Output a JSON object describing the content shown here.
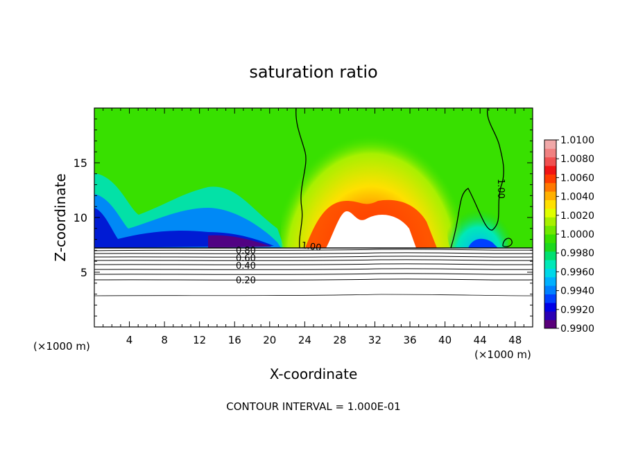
{
  "chart_data": {
    "type": "heatmap",
    "title": "saturation ratio",
    "xlabel": "X-coordinate",
    "ylabel": "Z-coordinate",
    "x_unit_left": "(×1000 m)",
    "x_unit_right": "(×1000 m)",
    "footer": "CONTOUR INTERVAL = 1.000E-01",
    "xlim": [
      0,
      50
    ],
    "ylim": [
      0,
      20
    ],
    "x_ticks": [
      4,
      8,
      12,
      16,
      20,
      24,
      28,
      32,
      36,
      40,
      44,
      48
    ],
    "y_ticks": [
      5,
      10,
      15
    ],
    "colorbar": {
      "labels": [
        "1.0100",
        "1.0080",
        "1.0060",
        "1.0040",
        "1.0020",
        "1.0000",
        "0.9980",
        "0.9960",
        "0.9940",
        "0.9920",
        "0.9900"
      ],
      "colors": [
        "#5a007a",
        "#2a00b4",
        "#0000e6",
        "#0040ff",
        "#0080ff",
        "#00b0ff",
        "#00d8e8",
        "#00e8b8",
        "#00e070",
        "#1cd81c",
        "#38e000",
        "#70e800",
        "#a8f000",
        "#e0ff00",
        "#ffe000",
        "#ffb000",
        "#ff7800",
        "#ff3c00",
        "#f01414",
        "#f05050",
        "#f08080",
        "#f0a8a8"
      ]
    },
    "contour_lines": [
      {
        "label": "0.20",
        "z": 4.4
      },
      {
        "label": "0.40",
        "z": 5.6
      },
      {
        "label": "0.60",
        "z": 6.5
      },
      {
        "label": "0.80",
        "z": 7.0
      },
      {
        "label": "1.00",
        "z": 7.2
      }
    ]
  }
}
